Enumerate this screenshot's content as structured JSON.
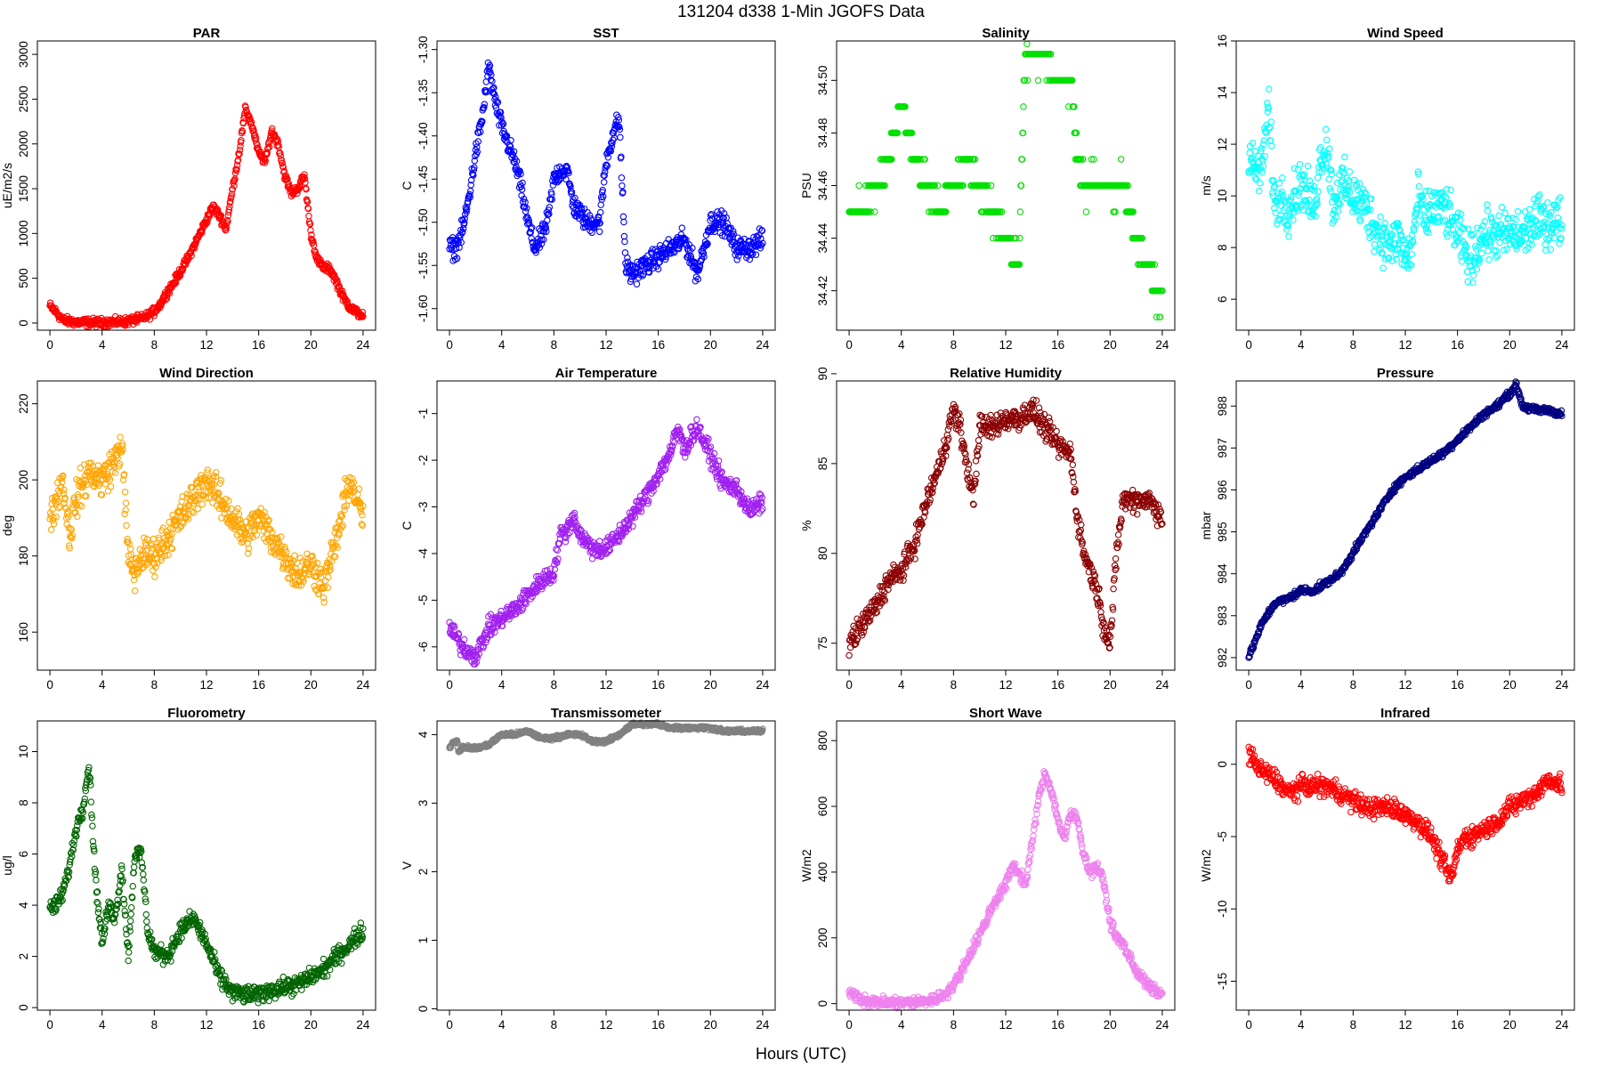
{
  "figure": {
    "title": "131204   d338   1-Min  JGOFS Data",
    "xlabel": "Hours (UTC)"
  },
  "chart_data": [
    {
      "type": "scatter",
      "title": "PAR",
      "ylabel": "uE/m2/s",
      "color": "#ff0000",
      "xlim": [
        0,
        24
      ],
      "xticks": [
        0,
        4,
        8,
        12,
        16,
        20,
        24
      ],
      "ylim": [
        -80,
        3150
      ],
      "yticks": [
        0,
        500,
        1000,
        1500,
        2000,
        2500,
        3000
      ],
      "ytick_labels": [
        "0",
        "500",
        "1000",
        "1500",
        "2000",
        "2500",
        "3000"
      ],
      "spread": 70,
      "x": [
        0,
        0.5,
        1,
        2,
        3,
        4,
        5,
        6,
        7,
        7.5,
        8,
        8.5,
        9,
        9.5,
        10,
        10.5,
        11,
        11.5,
        12,
        12.5,
        13,
        13.5,
        14,
        14.5,
        15,
        15.5,
        16,
        16.5,
        17,
        17.5,
        18,
        18.5,
        19,
        19.5,
        20,
        20.5,
        21,
        21.5,
        22,
        22.5,
        23,
        23.5,
        24
      ],
      "y": [
        190,
        120,
        30,
        10,
        5,
        5,
        10,
        20,
        50,
        80,
        130,
        220,
        350,
        450,
        580,
        700,
        850,
        1000,
        1150,
        1300,
        1200,
        1050,
        1500,
        1900,
        2400,
        2200,
        1900,
        1800,
        2150,
        2000,
        1650,
        1450,
        1500,
        1650,
        1000,
        700,
        620,
        600,
        450,
        280,
        180,
        120,
        80
      ]
    },
    {
      "type": "scatter",
      "title": "SST",
      "ylabel": "C",
      "color": "#0000ff",
      "xlim": [
        0,
        24
      ],
      "xticks": [
        0,
        4,
        8,
        12,
        16,
        20,
        24
      ],
      "ylim": [
        -1.625,
        -1.29
      ],
      "yticks": [
        -1.6,
        -1.55,
        -1.5,
        -1.45,
        -1.4,
        -1.35,
        -1.3
      ],
      "ytick_labels": [
        "-1.60",
        "-1.55",
        "-1.50",
        "-1.45",
        "-1.40",
        "-1.35",
        "-1.30"
      ],
      "spread": 0.018,
      "x": [
        0,
        0.5,
        1,
        1.5,
        2,
        2.5,
        3,
        3.5,
        4,
        4.5,
        5,
        5.5,
        6,
        6.5,
        7,
        7.5,
        8,
        8.5,
        9,
        9.5,
        10,
        10.5,
        11,
        11.5,
        12,
        12.5,
        13,
        13.5,
        14,
        15,
        16,
        17,
        18,
        19,
        20,
        21,
        22,
        23,
        24
      ],
      "y": [
        -1.53,
        -1.53,
        -1.51,
        -1.47,
        -1.42,
        -1.38,
        -1.32,
        -1.36,
        -1.39,
        -1.41,
        -1.43,
        -1.46,
        -1.5,
        -1.53,
        -1.52,
        -1.5,
        -1.45,
        -1.44,
        -1.44,
        -1.48,
        -1.49,
        -1.5,
        -1.5,
        -1.5,
        -1.43,
        -1.4,
        -1.38,
        -1.55,
        -1.56,
        -1.55,
        -1.54,
        -1.53,
        -1.52,
        -1.56,
        -1.5,
        -1.5,
        -1.53,
        -1.53,
        -1.52
      ]
    },
    {
      "type": "scatter",
      "title": "Salinity",
      "ylabel": "PSU",
      "color": "#00e000",
      "xlim": [
        0,
        24
      ],
      "xticks": [
        0,
        4,
        8,
        12,
        16,
        20,
        24
      ],
      "ylim": [
        34.405,
        34.515
      ],
      "yticks": [
        34.42,
        34.44,
        34.46,
        34.48,
        34.5
      ],
      "ytick_labels": [
        "34.42",
        "34.44",
        "34.46",
        "34.48",
        "34.50"
      ],
      "spread": 0.008,
      "step": 0.01,
      "x": [
        0,
        1,
        2,
        3,
        4,
        5,
        6,
        7,
        8,
        9,
        10,
        11,
        12,
        13,
        13.5,
        14,
        15,
        16,
        17,
        17.5,
        18,
        19,
        20,
        21,
        22,
        22.5,
        23,
        23.5,
        24
      ],
      "y": [
        34.45,
        34.45,
        34.46,
        34.47,
        34.49,
        34.47,
        34.46,
        34.45,
        34.46,
        34.47,
        34.46,
        34.45,
        34.44,
        34.43,
        34.51,
        34.51,
        34.51,
        34.5,
        34.5,
        34.47,
        34.46,
        34.46,
        34.46,
        34.46,
        34.44,
        34.43,
        34.43,
        34.42,
        34.42
      ]
    },
    {
      "type": "scatter",
      "title": "Wind Speed",
      "ylabel": "m/s",
      "color": "#00ffff",
      "xlim": [
        0,
        24
      ],
      "xticks": [
        0,
        4,
        8,
        12,
        16,
        20,
        24
      ],
      "ylim": [
        4.8,
        16
      ],
      "yticks": [
        6,
        8,
        10,
        12,
        14,
        16
      ],
      "ytick_labels": [
        "6",
        "8",
        "10",
        "12",
        "14",
        "16"
      ],
      "spread": 1.4,
      "x": [
        0,
        0.5,
        1,
        1.5,
        2,
        2.5,
        3,
        4,
        5,
        5.5,
        6,
        6.5,
        7,
        8,
        9,
        10,
        11,
        11.5,
        12,
        12.5,
        13,
        13.5,
        14,
        15,
        16,
        17,
        18,
        19,
        20,
        21,
        22,
        23,
        24
      ],
      "y": [
        11.5,
        11,
        11,
        13.5,
        9.5,
        10,
        9.5,
        10.5,
        9.5,
        11.5,
        12,
        9.5,
        10.5,
        10,
        9.5,
        8.5,
        8,
        8.5,
        7.5,
        8,
        10,
        9,
        9.5,
        9.5,
        8.5,
        7.5,
        8.5,
        8.5,
        8.5,
        8.5,
        9,
        9,
        9
      ]
    },
    {
      "type": "scatter",
      "title": "Wind Direction",
      "ylabel": "deg",
      "color": "#ffa500",
      "xlim": [
        0,
        24
      ],
      "xticks": [
        0,
        4,
        8,
        12,
        16,
        20,
        24
      ],
      "ylim": [
        150,
        226
      ],
      "yticks": [
        160,
        180,
        200,
        220
      ],
      "ytick_labels": [
        "160",
        "180",
        "200",
        "220"
      ],
      "spread": 7,
      "x": [
        0,
        0.5,
        1,
        1.5,
        2,
        3,
        4,
        5,
        5.5,
        6,
        6.5,
        7,
        8,
        9,
        10,
        11,
        12,
        13,
        14,
        15,
        16,
        17,
        18,
        19,
        20,
        21,
        22,
        23,
        24
      ],
      "y": [
        190,
        195,
        200,
        185,
        195,
        202,
        200,
        205,
        210,
        180,
        175,
        180,
        180,
        185,
        190,
        195,
        200,
        195,
        190,
        185,
        190,
        185,
        180,
        175,
        178,
        172,
        185,
        200,
        190
      ]
    },
    {
      "type": "scatter",
      "title": "Air Temperature",
      "ylabel": "C",
      "color": "#a020f0",
      "xlim": [
        0,
        24
      ],
      "xticks": [
        0,
        4,
        8,
        12,
        16,
        20,
        24
      ],
      "ylim": [
        -6.5,
        -0.3
      ],
      "yticks": [
        -6,
        -5,
        -4,
        -3,
        -2,
        -1
      ],
      "ytick_labels": [
        "-6",
        "-5",
        "-4",
        "-3",
        "-2",
        "-1"
      ],
      "spread": 0.3,
      "x": [
        0,
        1,
        2,
        3,
        4,
        5,
        6,
        7,
        8,
        8.5,
        9,
        9.5,
        10,
        11,
        12,
        13,
        14,
        15,
        16,
        17,
        17.5,
        18,
        18.5,
        19,
        20,
        21,
        22,
        23,
        24
      ],
      "y": [
        -5.6,
        -6,
        -6.2,
        -5.6,
        -5.4,
        -5.2,
        -4.9,
        -4.6,
        -4.4,
        -3.6,
        -3.5,
        -3.2,
        -3.6,
        -3.9,
        -3.9,
        -3.6,
        -3.2,
        -2.8,
        -2.3,
        -1.8,
        -1.3,
        -1.8,
        -1.5,
        -1.3,
        -1.9,
        -2.5,
        -2.6,
        -3.1,
        -2.9
      ]
    },
    {
      "type": "scatter",
      "title": "Relative Humidity",
      "ylabel": "%",
      "color": "#8b0000",
      "xlim": [
        0,
        24
      ],
      "xticks": [
        0,
        4,
        8,
        12,
        16,
        20,
        24
      ],
      "ylim": [
        73.5,
        89.6
      ],
      "yticks": [
        75,
        80,
        85,
        90
      ],
      "ytick_labels": [
        "75",
        "80",
        "85",
        "90"
      ],
      "spread": 1,
      "x": [
        0,
        1,
        2,
        3,
        4,
        5,
        6,
        7,
        8,
        8.5,
        9,
        9.5,
        10,
        11,
        12,
        13,
        14,
        15,
        16,
        17,
        17.5,
        18,
        18.5,
        19,
        19.5,
        20,
        20.5,
        21,
        22,
        23,
        24
      ],
      "y": [
        75,
        76,
        77,
        78.5,
        79,
        80.5,
        83,
        85,
        88,
        87,
        85,
        83,
        87,
        87,
        87.5,
        87.5,
        88,
        87,
        86,
        85.5,
        82,
        80,
        79,
        78,
        76,
        75,
        80,
        83,
        83,
        83,
        82
      ]
    },
    {
      "type": "scatter",
      "title": "Pressure",
      "ylabel": "mbar",
      "color": "#000080",
      "xlim": [
        0,
        24
      ],
      "xticks": [
        0,
        4,
        8,
        12,
        16,
        20,
        24
      ],
      "ylim": [
        981.7,
        988.6
      ],
      "yticks": [
        982,
        983,
        984,
        985,
        986,
        987,
        988
      ],
      "ytick_labels": [
        "982",
        "983",
        "984",
        "985",
        "986",
        "987",
        "988"
      ],
      "spread": 0.12,
      "x": [
        0,
        1,
        2,
        3,
        4,
        5,
        6,
        7,
        8,
        9,
        10,
        11,
        12,
        13,
        14,
        15,
        16,
        17,
        18,
        19,
        20,
        20.5,
        21,
        22,
        23,
        24
      ],
      "y": [
        982,
        982.8,
        983.3,
        983.4,
        983.6,
        983.6,
        983.8,
        984,
        984.5,
        985,
        985.5,
        986,
        986.3,
        986.5,
        986.7,
        986.9,
        987.2,
        987.5,
        987.8,
        988,
        988.3,
        988.5,
        988,
        987.9,
        987.9,
        987.8
      ]
    },
    {
      "type": "scatter",
      "title": "Fluorometry",
      "ylabel": "ug/l",
      "color": "#006400",
      "xlim": [
        0,
        24
      ],
      "xticks": [
        0,
        4,
        8,
        12,
        16,
        20,
        24
      ],
      "ylim": [
        -0.1,
        11.2
      ],
      "yticks": [
        0,
        2,
        4,
        6,
        8,
        10
      ],
      "ytick_labels": [
        "0",
        "2",
        "4",
        "6",
        "8",
        "10"
      ],
      "spread": 0.5,
      "x": [
        0,
        0.5,
        1,
        1.5,
        2,
        2.5,
        3,
        3.5,
        4,
        4.5,
        5,
        5.5,
        6,
        6.5,
        7,
        7.5,
        8,
        9,
        10,
        11,
        12,
        13,
        14,
        15,
        16,
        17,
        18,
        19,
        20,
        21,
        22,
        23,
        24
      ],
      "y": [
        3.9,
        4,
        4.5,
        5.5,
        7,
        7.8,
        9.5,
        5,
        2.5,
        4,
        3.5,
        5.5,
        2,
        6,
        6,
        3,
        2.2,
        2,
        3,
        3.5,
        2.5,
        1.2,
        0.6,
        0.5,
        0.5,
        0.7,
        0.8,
        0.9,
        1.2,
        1.5,
        2,
        2.5,
        3
      ]
    },
    {
      "type": "scatter",
      "title": "Transmissometer",
      "ylabel": "V",
      "color": "#808080",
      "xlim": [
        0,
        24
      ],
      "xticks": [
        0,
        4,
        8,
        12,
        16,
        20,
        24
      ],
      "ylim": [
        -0.02,
        4.2
      ],
      "yticks": [
        0,
        1,
        2,
        3,
        4
      ],
      "ytick_labels": [
        "0",
        "1",
        "2",
        "3",
        "4"
      ],
      "spread": 0.04,
      "x": [
        0,
        0.3,
        0.6,
        0.7,
        0.9,
        1,
        2,
        3,
        4,
        5,
        6,
        7,
        8,
        9,
        10,
        11,
        12,
        13,
        14,
        15,
        16,
        17,
        18,
        19,
        20,
        21,
        22,
        23,
        24
      ],
      "y": [
        3.8,
        3.9,
        3.9,
        3.75,
        3.8,
        3.82,
        3.8,
        3.85,
        4,
        4,
        4.05,
        3.95,
        3.95,
        4,
        4,
        3.9,
        3.9,
        4,
        4.15,
        4.15,
        4.15,
        4.1,
        4.1,
        4.1,
        4.1,
        4.05,
        4.05,
        4.05,
        4.05
      ]
    },
    {
      "type": "scatter",
      "title": "Short Wave",
      "ylabel": "W/m2",
      "color": "#ee82ee",
      "xlim": [
        0,
        24
      ],
      "xticks": [
        0,
        4,
        8,
        12,
        16,
        20,
        24
      ],
      "ylim": [
        -20,
        860
      ],
      "yticks": [
        0,
        200,
        400,
        600,
        800
      ],
      "ytick_labels": [
        "0",
        "200",
        "400",
        "600",
        "800"
      ],
      "spread": 25,
      "x": [
        0,
        0.5,
        1,
        2,
        3,
        4,
        5,
        6,
        7,
        7.5,
        8,
        8.5,
        9,
        9.5,
        10,
        10.5,
        11,
        11.5,
        12,
        12.5,
        13,
        13.5,
        14,
        14.5,
        15,
        15.5,
        16,
        16.5,
        17,
        17.5,
        18,
        18.5,
        19,
        19.5,
        20,
        20.5,
        21,
        22,
        23,
        24
      ],
      "y": [
        30,
        28,
        12,
        5,
        3,
        3,
        4,
        8,
        20,
        35,
        55,
        90,
        130,
        170,
        210,
        250,
        300,
        330,
        360,
        420,
        400,
        360,
        480,
        620,
        700,
        650,
        560,
        500,
        580,
        560,
        450,
        400,
        420,
        370,
        250,
        200,
        180,
        100,
        50,
        25
      ]
    },
    {
      "type": "scatter",
      "title": "Infrared",
      "ylabel": "W/m2",
      "color": "#ff0000",
      "xlim": [
        0,
        24
      ],
      "xticks": [
        0,
        4,
        8,
        12,
        16,
        20,
        24
      ],
      "ylim": [
        -17,
        3
      ],
      "yticks": [
        -15,
        -10,
        -5,
        0
      ],
      "ytick_labels": [
        "-15",
        "-10",
        "-5",
        "0"
      ],
      "spread": 1,
      "x": [
        0,
        0.5,
        1,
        2,
        3,
        4,
        5,
        6,
        7,
        8,
        9,
        10,
        11,
        12,
        13,
        14,
        15,
        15.5,
        16,
        16.5,
        17,
        18,
        19,
        20,
        21,
        22,
        23,
        24
      ],
      "y": [
        1,
        0,
        -0.5,
        -1,
        -2,
        -1.5,
        -1.5,
        -1.5,
        -2,
        -2.5,
        -3,
        -3,
        -3,
        -3.5,
        -4,
        -5,
        -7,
        -8,
        -6,
        -5,
        -5,
        -4.5,
        -4,
        -3,
        -2.5,
        -2,
        -1,
        -1.5
      ]
    }
  ]
}
